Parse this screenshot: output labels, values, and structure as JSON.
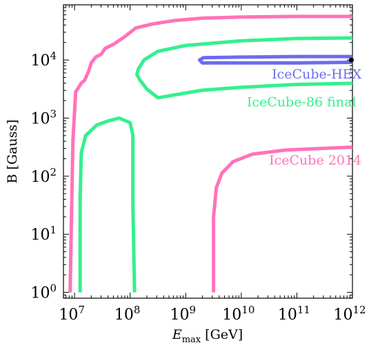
{
  "chart_data": {
    "type": "line",
    "title": "",
    "xlabel": {
      "main": "E",
      "sub": "max",
      "unit": " [GeV]"
    },
    "ylabel": "B [Gauss]",
    "xscale": "log",
    "yscale": "log",
    "xlim_log10": [
      6.8,
      12.0
    ],
    "ylim_log10": [
      -0.1,
      4.95
    ],
    "grid": false,
    "legend": "none",
    "x_ticks": [
      {
        "base": "10",
        "exp": "7",
        "log": 7
      },
      {
        "base": "10",
        "exp": "8",
        "log": 8
      },
      {
        "base": "10",
        "exp": "9",
        "log": 9
      },
      {
        "base": "10",
        "exp": "10",
        "log": 10
      },
      {
        "base": "10",
        "exp": "11",
        "log": 11
      },
      {
        "base": "10",
        "exp": "12",
        "log": 12
      }
    ],
    "y_ticks": [
      {
        "base": "10",
        "exp": "0",
        "log": 0
      },
      {
        "base": "10",
        "exp": "1",
        "log": 1
      },
      {
        "base": "10",
        "exp": "2",
        "log": 2
      },
      {
        "base": "10",
        "exp": "3",
        "log": 3
      },
      {
        "base": "10",
        "exp": "4",
        "log": 4
      }
    ],
    "series": [
      {
        "name": "IceCube 2014",
        "color": "#ff73b8",
        "label_pos_log": [
          10.5,
          2.2
        ],
        "points_log": [
          [
            [
              6.92,
              0.0
            ],
            [
              6.95,
              1.6
            ],
            [
              6.97,
              2.6
            ],
            [
              7.02,
              3.45
            ],
            [
              7.12,
              3.6
            ],
            [
              7.18,
              3.65
            ],
            [
              7.25,
              3.8
            ],
            [
              7.3,
              3.95
            ],
            [
              7.38,
              4.05
            ],
            [
              7.48,
              4.1
            ],
            [
              7.55,
              4.2
            ],
            [
              7.7,
              4.27
            ],
            [
              7.9,
              4.4
            ],
            [
              8.1,
              4.55
            ],
            [
              8.4,
              4.62
            ],
            [
              8.8,
              4.68
            ],
            [
              9.3,
              4.72
            ],
            [
              10.0,
              4.74
            ],
            [
              11.0,
              4.75
            ],
            [
              12.0,
              4.75
            ]
          ],
          [
            [
              9.5,
              0.0
            ],
            [
              9.5,
              1.3
            ],
            [
              9.55,
              1.8
            ],
            [
              9.65,
              2.05
            ],
            [
              9.85,
              2.25
            ],
            [
              10.2,
              2.38
            ],
            [
              10.8,
              2.45
            ],
            [
              11.5,
              2.48
            ],
            [
              12.0,
              2.5
            ]
          ]
        ]
      },
      {
        "name": "IceCube-86 final",
        "color": "#35f08e",
        "label_pos_log": [
          10.1,
          3.2
        ],
        "points_log": [
          [
            [
              7.1,
              0.0
            ],
            [
              7.1,
              1.6
            ],
            [
              7.12,
              2.4
            ],
            [
              7.2,
              2.7
            ],
            [
              7.4,
              2.88
            ],
            [
              7.6,
              2.95
            ],
            [
              7.8,
              3.0
            ],
            [
              8.0,
              2.92
            ],
            [
              8.05,
              2.7
            ],
            [
              8.05,
              1.5
            ],
            [
              8.08,
              0.0
            ]
          ],
          [
            [
              12.0,
              3.6
            ],
            [
              11.0,
              3.58
            ],
            [
              10.0,
              3.53
            ],
            [
              9.3,
              3.48
            ],
            [
              8.8,
              3.4
            ],
            [
              8.5,
              3.35
            ],
            [
              8.3,
              3.5
            ],
            [
              8.18,
              3.65
            ],
            [
              8.12,
              3.75
            ],
            [
              8.15,
              3.85
            ],
            [
              8.25,
              4.0
            ],
            [
              8.5,
              4.15
            ],
            [
              9.0,
              4.25
            ],
            [
              10.0,
              4.33
            ],
            [
              11.0,
              4.37
            ],
            [
              12.0,
              4.38
            ]
          ]
        ]
      },
      {
        "name": "IceCube-HEX",
        "color": "#6c6cf0",
        "label_pos_log": [
          10.55,
          3.68
        ],
        "points_log": [
          [
            [
              12.0,
              3.96
            ],
            [
              11.0,
              3.95
            ],
            [
              10.0,
              3.95
            ],
            [
              9.3,
              3.95
            ],
            [
              9.25,
              4.0
            ],
            [
              9.32,
              4.04
            ],
            [
              10.0,
              4.05
            ],
            [
              11.0,
              4.06
            ],
            [
              12.0,
              4.06
            ]
          ]
        ]
      }
    ],
    "markers": [
      {
        "x_log": 11.98,
        "y_log": 4.0,
        "color": "#000000"
      }
    ]
  }
}
